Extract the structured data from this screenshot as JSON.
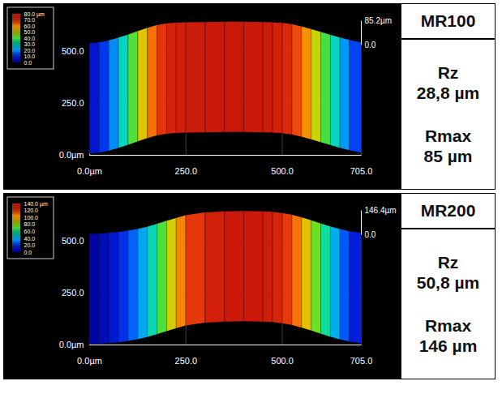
{
  "chart_data": [
    {
      "type": "surface",
      "title": "MR100",
      "x": [
        0,
        25,
        50,
        75,
        100,
        125,
        150,
        175,
        200,
        225,
        250,
        300,
        350,
        400,
        450,
        475,
        500,
        525,
        550,
        575,
        600,
        625,
        650,
        675,
        705
      ],
      "values": [
        4,
        8,
        14,
        24,
        35,
        47,
        58,
        68,
        74,
        77,
        78,
        79,
        80,
        80,
        79,
        78,
        76,
        72,
        64,
        55,
        45,
        35,
        25,
        16,
        8
      ],
      "xlim": [
        0,
        705
      ],
      "xticks": [
        {
          "value": 0,
          "label": "0.0µm"
        },
        {
          "value": 250,
          "label": "250.0"
        },
        {
          "value": 500,
          "label": "500.0"
        },
        {
          "value": 705,
          "label": "705.0"
        }
      ],
      "ylim": [
        0,
        530
      ],
      "yticks": [
        {
          "value": 0,
          "label": "0.0µm"
        },
        {
          "value": 250,
          "label": "250.0"
        },
        {
          "value": 500,
          "label": "500.0"
        }
      ],
      "zlim": [
        0,
        85.2
      ],
      "zticks": [
        {
          "value": 85.2,
          "label": "85.2µm"
        },
        {
          "value": 0,
          "label": "0.0"
        }
      ],
      "colorbar": {
        "range": [
          0,
          80
        ],
        "ticks": [
          {
            "value": 80,
            "label": "80.0 µm"
          },
          {
            "value": 70,
            "label": "70.0"
          },
          {
            "value": 60,
            "label": "60.0"
          },
          {
            "value": 50,
            "label": "50.0"
          },
          {
            "value": 40,
            "label": "40.0"
          },
          {
            "value": 30,
            "label": "30.0"
          },
          {
            "value": 20,
            "label": "20.0"
          },
          {
            "value": 10,
            "label": "10.0"
          },
          {
            "value": 0,
            "label": "0.0"
          }
        ]
      },
      "metrics": [
        {
          "name": "Rz",
          "text": "28,8 µm"
        },
        {
          "name": "Rmax",
          "text": "85 µm"
        }
      ]
    },
    {
      "type": "surface",
      "title": "MR200",
      "x": [
        0,
        25,
        50,
        75,
        100,
        125,
        150,
        175,
        200,
        225,
        250,
        300,
        350,
        400,
        450,
        475,
        500,
        525,
        550,
        575,
        600,
        625,
        650,
        675,
        705
      ],
      "values": [
        2,
        4,
        8,
        14,
        22,
        32,
        45,
        62,
        80,
        98,
        115,
        132,
        138,
        140,
        138,
        135,
        128,
        118,
        102,
        85,
        66,
        48,
        32,
        18,
        8
      ],
      "xlim": [
        0,
        705
      ],
      "xticks": [
        {
          "value": 0,
          "label": "0.0µm"
        },
        {
          "value": 250,
          "label": "250.0"
        },
        {
          "value": 500,
          "label": "500.0"
        },
        {
          "value": 705,
          "label": "705.0"
        }
      ],
      "ylim": [
        0,
        530
      ],
      "yticks": [
        {
          "value": 0,
          "label": "0.0µm"
        },
        {
          "value": 250,
          "label": "250.0"
        },
        {
          "value": 500,
          "label": "500.0"
        }
      ],
      "zlim": [
        0,
        146.4
      ],
      "zticks": [
        {
          "value": 146.4,
          "label": "146.4µm"
        },
        {
          "value": 0,
          "label": "0.0"
        }
      ],
      "colorbar": {
        "range": [
          0,
          140
        ],
        "ticks": [
          {
            "value": 140,
            "label": "140.0 µm"
          },
          {
            "value": 120,
            "label": "120.0"
          },
          {
            "value": 100,
            "label": "100.0"
          },
          {
            "value": 80,
            "label": "80.0"
          },
          {
            "value": 60,
            "label": "60.0"
          },
          {
            "value": 40,
            "label": "40.0"
          },
          {
            "value": 20,
            "label": "20.0"
          },
          {
            "value": 0,
            "label": "0.0"
          }
        ]
      },
      "metrics": [
        {
          "name": "Rz",
          "text": "50,8 µm"
        },
        {
          "name": "Rmax",
          "text": "146 µm"
        }
      ]
    }
  ]
}
